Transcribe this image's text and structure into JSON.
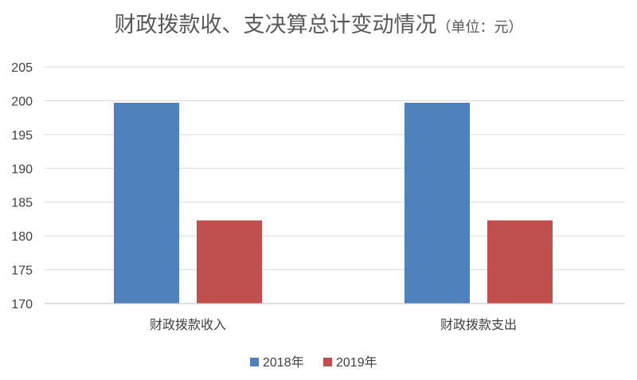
{
  "chart": {
    "title_main": "财政拨款收、支决算总计变动情况",
    "title_unit": "（单位：元）"
  },
  "chart_data": {
    "type": "bar",
    "title": "财政拨款收、支决算总计变动情况（单位：元）",
    "categories": [
      "财政拨款收入",
      "财政拨款支出"
    ],
    "series": [
      {
        "name": "2018年",
        "values": [
          199.7,
          199.7
        ],
        "color": "#4f81bd"
      },
      {
        "name": "2019年",
        "values": [
          182.3,
          182.3
        ],
        "color": "#c0504d"
      }
    ],
    "yticks": [
      170,
      175,
      180,
      185,
      190,
      195,
      200,
      205
    ],
    "ylim": [
      170,
      205
    ],
    "grid": true,
    "legend": "bottom"
  }
}
